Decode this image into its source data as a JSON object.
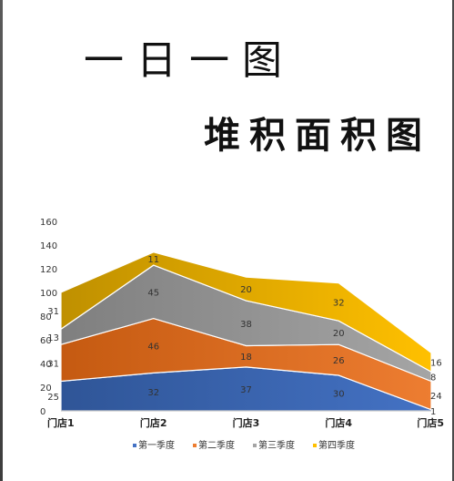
{
  "page": {
    "title_line1": "一日一图",
    "title_line2": "堆积面积图"
  },
  "chart_data": {
    "type": "area",
    "stacked": true,
    "categories": [
      "门店1",
      "门店2",
      "门店3",
      "门店4",
      "门店5"
    ],
    "series": [
      {
        "name": "第一季度",
        "values": [
          25,
          32,
          37,
          30,
          1
        ],
        "color": "#4472c4"
      },
      {
        "name": "第二季度",
        "values": [
          31,
          46,
          18,
          26,
          24
        ],
        "color": "#ed7d31"
      },
      {
        "name": "第三季度",
        "values": [
          13,
          45,
          38,
          20,
          8
        ],
        "color": "#a5a5a5"
      },
      {
        "name": "第四季度",
        "values": [
          31,
          11,
          20,
          32,
          16
        ],
        "color": "#ffc000"
      }
    ],
    "ylim": [
      0,
      160
    ],
    "yticks": [
      0,
      20,
      40,
      60,
      80,
      100,
      120,
      140,
      160
    ],
    "grid": false,
    "legend_position": "bottom",
    "data_labels": true
  }
}
